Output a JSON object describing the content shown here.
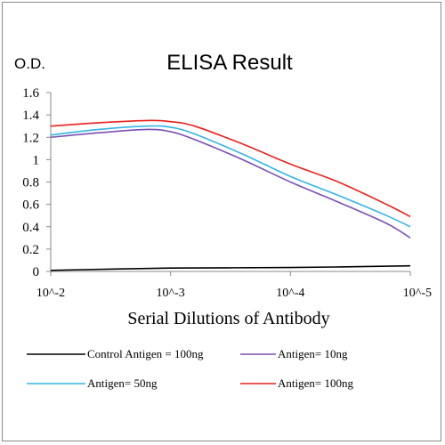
{
  "chart_data": {
    "type": "line",
    "title": "ELISA Result",
    "ylabel": "O.D.",
    "xlabel": "Serial Dilutions  of Antibody",
    "ylim": [
      0,
      1.6
    ],
    "y_ticks": [
      "0",
      "0.2",
      "0.4",
      "0.6",
      "0.8",
      "1",
      "1.2",
      "1.4",
      "1.6"
    ],
    "x_ticks": [
      "10^-2",
      "10^-3",
      "10^-4",
      "10^-5"
    ],
    "x_scale": "log",
    "grid": false,
    "legend_position": "bottom",
    "series": [
      {
        "name": "Control Antigen = 100ng",
        "color": "#000000",
        "x": [
          0.01,
          0.001,
          0.0001,
          1e-05
        ],
        "y": [
          0.01,
          0.03,
          0.035,
          0.05
        ]
      },
      {
        "name": "Antigen= 10ng",
        "color": "#7b4fb3",
        "x": [
          0.01,
          0.00398,
          0.00158,
          0.001,
          0.000631,
          0.000251,
          0.0001,
          3.98e-05,
          1.58e-05,
          1e-05
        ],
        "y": [
          1.2,
          1.24,
          1.27,
          1.25,
          1.18,
          1.0,
          0.8,
          0.62,
          0.43,
          0.3
        ]
      },
      {
        "name": "Antigen= 50ng",
        "color": "#33b5e5",
        "x": [
          0.01,
          0.00398,
          0.00158,
          0.001,
          0.000631,
          0.000251,
          0.0001,
          3.98e-05,
          1.58e-05,
          1e-05
        ],
        "y": [
          1.22,
          1.27,
          1.3,
          1.29,
          1.23,
          1.05,
          0.85,
          0.68,
          0.5,
          0.4
        ]
      },
      {
        "name": "Antigen= 100ng",
        "color": "#e8211a",
        "x": [
          0.01,
          0.00398,
          0.00158,
          0.001,
          0.000631,
          0.000251,
          0.0001,
          3.98e-05,
          1.58e-05,
          1e-05
        ],
        "y": [
          1.3,
          1.33,
          1.35,
          1.34,
          1.3,
          1.14,
          0.96,
          0.8,
          0.6,
          0.49
        ]
      }
    ]
  }
}
